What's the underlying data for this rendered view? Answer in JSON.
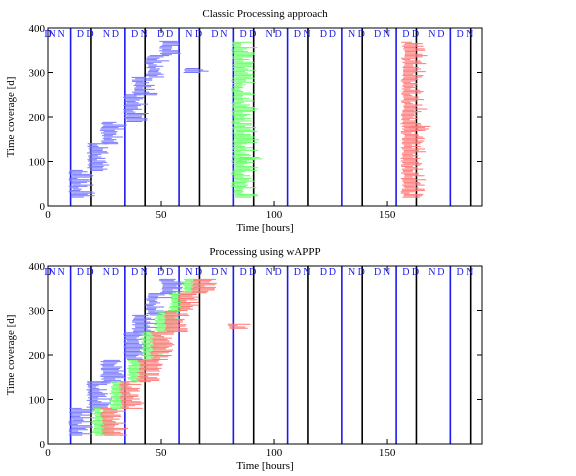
{
  "chart_data": [
    {
      "type": "scatter",
      "title": "Classic Processing approach",
      "xlabel": "Time [hours]",
      "ylabel": "Time coverage [d]",
      "xlim": [
        0,
        192
      ],
      "ylim": [
        0,
        400
      ],
      "xticks": [
        0,
        50,
        100,
        150
      ],
      "yticks": [
        0,
        100,
        200,
        300,
        400
      ],
      "grid": false,
      "legend": "none",
      "marker_labels": [
        "N",
        "N",
        "D",
        "D",
        "N",
        "D",
        "D",
        "N",
        "D",
        "D",
        "N",
        "D",
        "D",
        "N",
        "D",
        "D",
        "N",
        "D",
        "D",
        "N",
        "D",
        "D",
        "N",
        "D",
        "D",
        "N",
        "D",
        "D",
        "N",
        "D",
        "D",
        "N",
        "D",
        "D"
      ],
      "series": [
        {
          "color": "#7777ff",
          "values": [
            [
              10,
              20,
              80
            ],
            [
              18,
              80,
              140
            ],
            [
              24,
              140,
              190
            ],
            [
              34,
              190,
              250
            ],
            [
              38,
              250,
              290
            ],
            [
              44,
              290,
              340
            ],
            [
              50,
              340,
              370
            ],
            [
              60,
              300,
              310
            ]
          ]
        },
        {
          "color": "#66ff66",
          "values": [
            [
              82,
              20,
              370
            ],
            [
              84,
              100,
              110
            ]
          ]
        },
        {
          "color": "#ff7777",
          "values": [
            [
              157,
              20,
              370
            ],
            [
              160,
              170,
              180
            ]
          ]
        }
      ]
    },
    {
      "type": "scatter",
      "title": "Processing using wAPPP",
      "xlabel": "Time [hours]",
      "ylabel": "Time coverage [d]",
      "xlim": [
        0,
        192
      ],
      "ylim": [
        0,
        400
      ],
      "xticks": [
        0,
        50,
        100,
        150
      ],
      "yticks": [
        0,
        100,
        200,
        300,
        400
      ],
      "grid": false,
      "legend": "none",
      "marker_labels": [
        "N",
        "N",
        "D",
        "D",
        "N",
        "D",
        "D",
        "N",
        "D",
        "D",
        "N",
        "D",
        "D",
        "N",
        "D",
        "D",
        "N",
        "D",
        "D",
        "N",
        "D",
        "D",
        "N",
        "D",
        "D",
        "N",
        "D",
        "D",
        "N",
        "D",
        "D",
        "N",
        "D",
        "D"
      ],
      "series": [
        {
          "color": "#7777ff",
          "values": [
            [
              10,
              20,
              80
            ],
            [
              18,
              80,
              140
            ],
            [
              24,
              140,
              190
            ],
            [
              34,
              190,
              250
            ],
            [
              38,
              250,
              290
            ],
            [
              44,
              290,
              340
            ],
            [
              50,
              340,
              370
            ]
          ]
        },
        {
          "color": "#66ff66",
          "values": [
            [
              20,
              20,
              80
            ],
            [
              28,
              80,
              140
            ],
            [
              36,
              140,
              190
            ],
            [
              42,
              190,
              250
            ],
            [
              48,
              250,
              300
            ],
            [
              54,
              300,
              340
            ],
            [
              60,
              340,
              370
            ]
          ]
        },
        {
          "color": "#ff7777",
          "values": [
            [
              24,
              20,
              80
            ],
            [
              32,
              80,
              140
            ],
            [
              40,
              140,
              190
            ],
            [
              46,
              190,
              250
            ],
            [
              52,
              250,
              300
            ],
            [
              58,
              300,
              340
            ],
            [
              64,
              340,
              370
            ],
            [
              80,
              260,
              270
            ]
          ]
        }
      ]
    }
  ]
}
